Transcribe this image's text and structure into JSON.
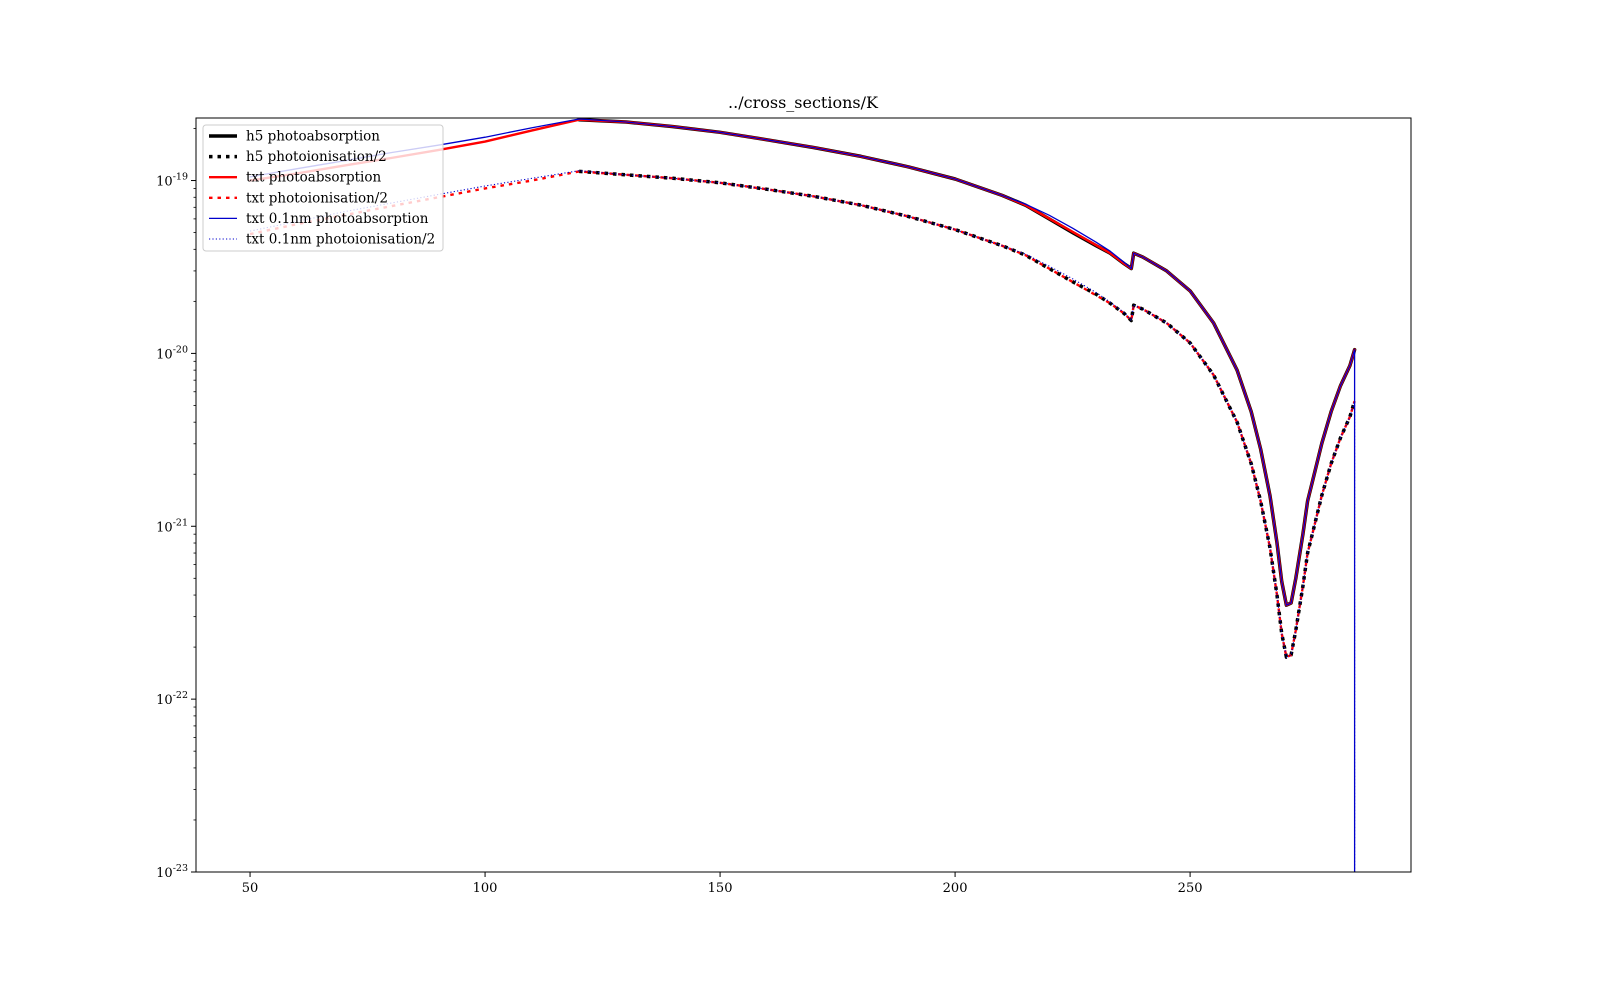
{
  "chart_data": {
    "type": "line",
    "title": "../cross_sections/K",
    "xlabel": "",
    "ylabel": "",
    "x_scale": "linear",
    "y_scale": "log",
    "xlim": [
      38.5,
      297
    ],
    "ylim": [
      1e-23,
      2.3e-19
    ],
    "x_ticks": [
      {
        "value": 50,
        "label": "50"
      },
      {
        "value": 100,
        "label": "100"
      },
      {
        "value": 150,
        "label": "150"
      },
      {
        "value": 200,
        "label": "200"
      },
      {
        "value": 250,
        "label": "250"
      }
    ],
    "y_ticks": [
      {
        "value": 1e-19,
        "base": "10",
        "exp": "-19"
      },
      {
        "value": 1e-20,
        "base": "10",
        "exp": "-20"
      },
      {
        "value": 1e-21,
        "base": "10",
        "exp": "-21"
      },
      {
        "value": 1e-22,
        "base": "10",
        "exp": "-22"
      },
      {
        "value": 1e-23,
        "base": "10",
        "exp": "-23"
      }
    ],
    "grid": false,
    "legend_position": "upper left",
    "series": [
      {
        "name": "h5 photoabsorption",
        "color": "#000000",
        "style": "solid",
        "width": 3.5,
        "points": [
          [
            120,
            2.25e-19
          ],
          [
            130,
            2.18e-19
          ],
          [
            140,
            2.05e-19
          ],
          [
            150,
            1.9e-19
          ],
          [
            160,
            1.72e-19
          ],
          [
            170,
            1.55e-19
          ],
          [
            180,
            1.38e-19
          ],
          [
            190,
            1.2e-19
          ],
          [
            200,
            1.02e-19
          ],
          [
            210,
            8.2e-20
          ],
          [
            215,
            7.2e-20
          ],
          [
            220,
            6e-20
          ],
          [
            225,
            5e-20
          ],
          [
            230,
            4.2e-20
          ],
          [
            233,
            3.8e-20
          ],
          [
            236,
            3.3e-20
          ],
          [
            237.5,
            3.1e-20
          ],
          [
            238,
            3.8e-20
          ],
          [
            240,
            3.6e-20
          ],
          [
            245,
            3e-20
          ],
          [
            250,
            2.3e-20
          ],
          [
            255,
            1.5e-20
          ],
          [
            260,
            8e-21
          ],
          [
            263,
            4.6e-21
          ],
          [
            265,
            2.8e-21
          ],
          [
            267,
            1.5e-21
          ],
          [
            268.5,
            8e-22
          ],
          [
            269.5,
            4.8e-22
          ],
          [
            270.5,
            3.5e-22
          ],
          [
            271.5,
            3.6e-22
          ],
          [
            272.5,
            5e-22
          ],
          [
            274,
            9e-22
          ],
          [
            275,
            1.4e-21
          ],
          [
            276,
            1.8e-21
          ],
          [
            278,
            3e-21
          ],
          [
            280,
            4.6e-21
          ],
          [
            282,
            6.5e-21
          ],
          [
            284,
            8.5e-21
          ],
          [
            285,
            1.05e-20
          ]
        ]
      },
      {
        "name": "h5 photoionisation/2",
        "color": "#000000",
        "style": "dotted",
        "width": 3.5,
        "points": [
          [
            120,
            1.13e-19
          ],
          [
            130,
            1.08e-19
          ],
          [
            140,
            1.03e-19
          ],
          [
            150,
            9.7e-20
          ],
          [
            160,
            8.9e-20
          ],
          [
            170,
            8.1e-20
          ],
          [
            180,
            7.2e-20
          ],
          [
            190,
            6.2e-20
          ],
          [
            200,
            5.2e-20
          ],
          [
            210,
            4.2e-20
          ],
          [
            215,
            3.7e-20
          ],
          [
            220,
            3.1e-20
          ],
          [
            225,
            2.6e-20
          ],
          [
            230,
            2.2e-20
          ],
          [
            233,
            1.95e-20
          ],
          [
            236,
            1.7e-20
          ],
          [
            237.5,
            1.55e-20
          ],
          [
            238,
            1.9e-20
          ],
          [
            240,
            1.8e-20
          ],
          [
            245,
            1.5e-20
          ],
          [
            250,
            1.15e-20
          ],
          [
            255,
            7.5e-21
          ],
          [
            260,
            4e-21
          ],
          [
            263,
            2.3e-21
          ],
          [
            265,
            1.4e-21
          ],
          [
            267,
            7.5e-22
          ],
          [
            268.5,
            4e-22
          ],
          [
            269.5,
            2.4e-22
          ],
          [
            270.5,
            1.75e-22
          ],
          [
            271.5,
            1.8e-22
          ],
          [
            272.5,
            2.5e-22
          ],
          [
            274,
            4.5e-22
          ],
          [
            275,
            7e-22
          ],
          [
            276,
            9e-22
          ],
          [
            278,
            1.5e-21
          ],
          [
            280,
            2.3e-21
          ],
          [
            282,
            3.25e-21
          ],
          [
            284,
            4.3e-21
          ],
          [
            285,
            5.3e-21
          ]
        ]
      },
      {
        "name": "txt photoabsorption",
        "color": "#ff0000",
        "style": "solid",
        "width": 2.4,
        "points": [
          [
            50,
            1e-19
          ],
          [
            60,
            1.1e-19
          ],
          [
            70,
            1.22e-19
          ],
          [
            80,
            1.35e-19
          ],
          [
            90,
            1.5e-19
          ],
          [
            100,
            1.68e-19
          ],
          [
            110,
            1.95e-19
          ],
          [
            120,
            2.25e-19
          ],
          [
            130,
            2.18e-19
          ],
          [
            140,
            2.05e-19
          ],
          [
            150,
            1.9e-19
          ],
          [
            160,
            1.72e-19
          ],
          [
            170,
            1.55e-19
          ],
          [
            180,
            1.38e-19
          ],
          [
            190,
            1.2e-19
          ],
          [
            200,
            1.02e-19
          ],
          [
            210,
            8.2e-20
          ],
          [
            215,
            7.2e-20
          ],
          [
            233,
            3.8e-20
          ],
          [
            236,
            3.3e-20
          ],
          [
            237.5,
            3.1e-20
          ],
          [
            238,
            3.8e-20
          ],
          [
            240,
            3.6e-20
          ],
          [
            245,
            3e-20
          ],
          [
            250,
            2.3e-20
          ],
          [
            255,
            1.5e-20
          ],
          [
            260,
            8e-21
          ],
          [
            263,
            4.6e-21
          ],
          [
            265,
            2.8e-21
          ],
          [
            267,
            1.5e-21
          ],
          [
            268.5,
            8e-22
          ],
          [
            269.5,
            4.8e-22
          ],
          [
            270.5,
            3.5e-22
          ],
          [
            271.5,
            3.6e-22
          ],
          [
            272.5,
            5e-22
          ],
          [
            274,
            9e-22
          ],
          [
            275,
            1.4e-21
          ],
          [
            276,
            1.8e-21
          ],
          [
            278,
            3e-21
          ],
          [
            280,
            4.6e-21
          ],
          [
            282,
            6.5e-21
          ],
          [
            284,
            8.5e-21
          ],
          [
            285,
            1.05e-20
          ]
        ]
      },
      {
        "name": "txt photoionisation/2",
        "color": "#ff0000",
        "style": "dotted",
        "width": 2.4,
        "points": [
          [
            50,
            4.9e-20
          ],
          [
            60,
            5.6e-20
          ],
          [
            70,
            6.3e-20
          ],
          [
            80,
            7.1e-20
          ],
          [
            90,
            8e-20
          ],
          [
            100,
            9e-20
          ],
          [
            110,
            1e-19
          ],
          [
            120,
            1.13e-19
          ],
          [
            130,
            1.08e-19
          ],
          [
            140,
            1.03e-19
          ],
          [
            150,
            9.7e-20
          ],
          [
            160,
            8.9e-20
          ],
          [
            170,
            8.1e-20
          ],
          [
            180,
            7.2e-20
          ],
          [
            190,
            6.2e-20
          ],
          [
            200,
            5.2e-20
          ],
          [
            210,
            4.2e-20
          ],
          [
            215,
            3.7e-20
          ],
          [
            233,
            1.95e-20
          ],
          [
            236,
            1.7e-20
          ],
          [
            237.5,
            1.55e-20
          ],
          [
            238,
            1.9e-20
          ],
          [
            240,
            1.8e-20
          ],
          [
            245,
            1.5e-20
          ],
          [
            250,
            1.15e-20
          ],
          [
            255,
            7.5e-21
          ],
          [
            260,
            4e-21
          ],
          [
            263,
            2.3e-21
          ],
          [
            265,
            1.4e-21
          ],
          [
            267,
            7.5e-22
          ],
          [
            268.5,
            4e-22
          ],
          [
            269.5,
            2.4e-22
          ],
          [
            270.5,
            1.75e-22
          ],
          [
            271.5,
            1.8e-22
          ],
          [
            272.5,
            2.5e-22
          ],
          [
            274,
            4.5e-22
          ],
          [
            275,
            7e-22
          ],
          [
            276,
            9e-22
          ],
          [
            278,
            1.5e-21
          ],
          [
            280,
            2.3e-21
          ],
          [
            282,
            3.25e-21
          ],
          [
            284,
            4.3e-21
          ],
          [
            285,
            5.3e-21
          ]
        ]
      },
      {
        "name": "txt 0.1nm photoabsorption",
        "color": "#0000cc",
        "style": "solid",
        "width": 1.3,
        "points": [
          [
            50,
            1.05e-19
          ],
          [
            60,
            1.17e-19
          ],
          [
            70,
            1.3e-19
          ],
          [
            80,
            1.45e-19
          ],
          [
            90,
            1.6e-19
          ],
          [
            100,
            1.78e-19
          ],
          [
            110,
            2.02e-19
          ],
          [
            120,
            2.27e-19
          ],
          [
            130,
            2.18e-19
          ],
          [
            140,
            2.05e-19
          ],
          [
            150,
            1.9e-19
          ],
          [
            160,
            1.72e-19
          ],
          [
            170,
            1.55e-19
          ],
          [
            180,
            1.38e-19
          ],
          [
            190,
            1.2e-19
          ],
          [
            200,
            1.02e-19
          ],
          [
            210,
            8.2e-20
          ],
          [
            215,
            7.3e-20
          ],
          [
            220,
            6.3e-20
          ],
          [
            225,
            5.3e-20
          ],
          [
            230,
            4.4e-20
          ],
          [
            233,
            3.9e-20
          ],
          [
            236,
            3.35e-20
          ],
          [
            237.5,
            3.1e-20
          ],
          [
            238,
            3.8e-20
          ],
          [
            240,
            3.6e-20
          ],
          [
            245,
            3e-20
          ],
          [
            250,
            2.3e-20
          ],
          [
            255,
            1.5e-20
          ],
          [
            260,
            8e-21
          ],
          [
            263,
            4.6e-21
          ],
          [
            265,
            2.8e-21
          ],
          [
            267,
            1.5e-21
          ],
          [
            268.5,
            8e-22
          ],
          [
            269.5,
            4.8e-22
          ],
          [
            270.5,
            3.5e-22
          ],
          [
            271.5,
            3.6e-22
          ],
          [
            272.5,
            5e-22
          ],
          [
            274,
            9e-22
          ],
          [
            275,
            1.4e-21
          ],
          [
            276,
            1.8e-21
          ],
          [
            278,
            3e-21
          ],
          [
            280,
            4.6e-21
          ],
          [
            282,
            6.5e-21
          ],
          [
            284,
            8.5e-21
          ],
          [
            285,
            1.05e-20
          ],
          [
            285,
            1e-23
          ]
        ]
      },
      {
        "name": "txt 0.1nm photoionisation/2",
        "color": "#0000cc",
        "style": "dotted",
        "width": 1.1,
        "points": [
          [
            50,
            5.1e-20
          ],
          [
            60,
            5.8e-20
          ],
          [
            70,
            6.6e-20
          ],
          [
            80,
            7.4e-20
          ],
          [
            90,
            8.3e-20
          ],
          [
            100,
            9.3e-20
          ],
          [
            110,
            1.03e-19
          ],
          [
            120,
            1.14e-19
          ],
          [
            130,
            1.08e-19
          ],
          [
            140,
            1.03e-19
          ],
          [
            150,
            9.7e-20
          ],
          [
            160,
            8.9e-20
          ],
          [
            170,
            8.1e-20
          ],
          [
            180,
            7.2e-20
          ],
          [
            190,
            6.2e-20
          ],
          [
            200,
            5.2e-20
          ],
          [
            210,
            4.2e-20
          ],
          [
            215,
            3.75e-20
          ],
          [
            220,
            3.2e-20
          ],
          [
            225,
            2.7e-20
          ],
          [
            230,
            2.25e-20
          ],
          [
            233,
            1.98e-20
          ],
          [
            236,
            1.72e-20
          ],
          [
            237.5,
            1.55e-20
          ],
          [
            238,
            1.9e-20
          ],
          [
            240,
            1.8e-20
          ],
          [
            245,
            1.5e-20
          ],
          [
            250,
            1.15e-20
          ],
          [
            255,
            7.5e-21
          ],
          [
            260,
            4e-21
          ],
          [
            263,
            2.3e-21
          ],
          [
            265,
            1.4e-21
          ],
          [
            267,
            7.5e-22
          ],
          [
            268.5,
            4e-22
          ],
          [
            269.5,
            2.4e-22
          ],
          [
            270.5,
            1.75e-22
          ],
          [
            271.5,
            1.8e-22
          ],
          [
            272.5,
            2.5e-22
          ],
          [
            274,
            4.5e-22
          ],
          [
            275,
            7e-22
          ],
          [
            276,
            9e-22
          ],
          [
            278,
            1.5e-21
          ],
          [
            280,
            2.3e-21
          ],
          [
            282,
            3.25e-21
          ],
          [
            284,
            4.3e-21
          ],
          [
            285,
            5.3e-21
          ],
          [
            285,
            1e-23
          ]
        ]
      }
    ]
  }
}
